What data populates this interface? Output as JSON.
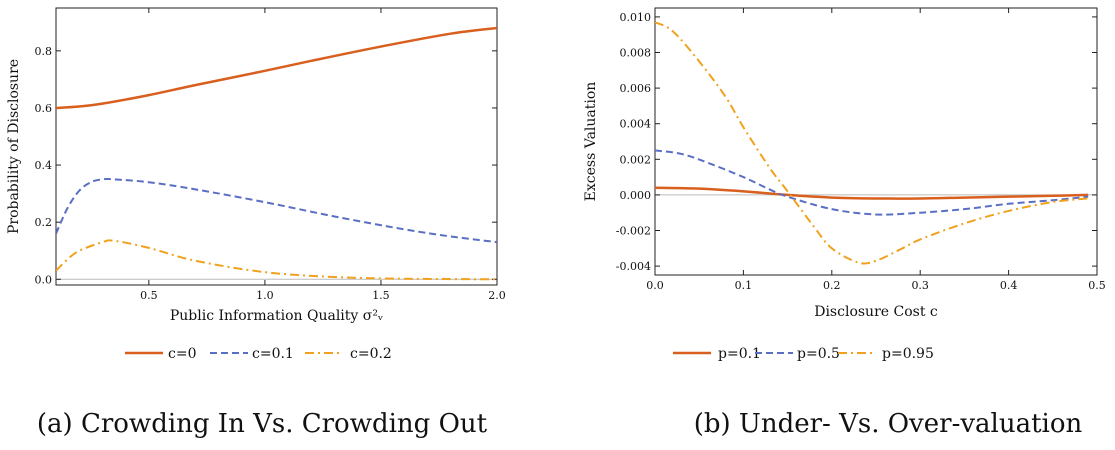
{
  "colors": {
    "s1": "#D95F1E",
    "s2": "#5A6FC4",
    "s3": "#F0A21E"
  },
  "captions": {
    "a": "(a) Crowding In Vs. Crowding Out",
    "b": "(b) Under- Vs. Over-valuation"
  },
  "chart_data": [
    {
      "type": "line",
      "xlabel": "Public Information Quality σ²ᵥ",
      "ylabel": "Probability of Disclosure",
      "xlim": [
        0.1,
        2.0
      ],
      "ylim": [
        -0.02,
        0.95
      ],
      "xticks": [
        0.5,
        1.0,
        1.5,
        2.0
      ],
      "xtick_labels": [
        "0.5",
        "1.0",
        "1.5",
        "2.0"
      ],
      "yticks": [
        0.0,
        0.2,
        0.4,
        0.6,
        0.8
      ],
      "ytick_labels": [
        "0.0",
        "0.2",
        "0.4",
        "0.6",
        "0.8"
      ],
      "zero_line": true,
      "legend_position": "bottom",
      "series": [
        {
          "name": "c=0",
          "style": "solid",
          "x": [
            0.1,
            0.2,
            0.3,
            0.5,
            0.7,
            1.0,
            1.2,
            1.5,
            1.8,
            2.0
          ],
          "y": [
            0.6,
            0.605,
            0.615,
            0.645,
            0.68,
            0.73,
            0.765,
            0.815,
            0.86,
            0.88
          ]
        },
        {
          "name": "c=0.1",
          "style": "dashed",
          "x": [
            0.1,
            0.15,
            0.2,
            0.25,
            0.3,
            0.35,
            0.5,
            0.7,
            1.0,
            1.3,
            1.6,
            1.8,
            2.0
          ],
          "y": [
            0.16,
            0.25,
            0.31,
            0.34,
            0.35,
            0.35,
            0.34,
            0.315,
            0.27,
            0.22,
            0.175,
            0.15,
            0.13
          ]
        },
        {
          "name": "c=0.2",
          "style": "dashdot",
          "x": [
            0.1,
            0.15,
            0.2,
            0.3,
            0.35,
            0.5,
            0.7,
            1.0,
            1.3,
            1.6,
            2.0
          ],
          "y": [
            0.03,
            0.07,
            0.1,
            0.13,
            0.135,
            0.11,
            0.065,
            0.025,
            0.008,
            0.002,
            0.0
          ]
        }
      ]
    },
    {
      "type": "line",
      "xlabel": "Disclosure Cost c",
      "ylabel": "Excess Valuation",
      "xlim": [
        0.0,
        0.5
      ],
      "ylim": [
        -0.0045,
        0.0105
      ],
      "xticks": [
        0.0,
        0.1,
        0.2,
        0.3,
        0.4,
        0.5
      ],
      "xtick_labels": [
        "0.0",
        "0.1",
        "0.2",
        "0.3",
        "0.4",
        "0.5"
      ],
      "yticks": [
        -0.004,
        -0.002,
        0.0,
        0.002,
        0.004,
        0.006,
        0.008,
        0.01
      ],
      "ytick_labels": [
        "-0.004",
        "-0.002",
        "0.000",
        "0.002",
        "0.004",
        "0.006",
        "0.008",
        "0.010"
      ],
      "zero_line": true,
      "legend_position": "bottom",
      "series": [
        {
          "name": "p=0.1",
          "style": "solid",
          "x": [
            0.0,
            0.05,
            0.1,
            0.15,
            0.2,
            0.25,
            0.3,
            0.35,
            0.4,
            0.45,
            0.49
          ],
          "y": [
            0.0004,
            0.00035,
            0.0002,
            0.0,
            -0.00015,
            -0.0002,
            -0.0002,
            -0.00015,
            -0.0001,
            -5e-05,
            0.0
          ]
        },
        {
          "name": "p=0.5",
          "style": "dashed",
          "x": [
            0.0,
            0.03,
            0.06,
            0.1,
            0.13,
            0.15,
            0.2,
            0.25,
            0.3,
            0.35,
            0.4,
            0.45,
            0.49
          ],
          "y": [
            0.0025,
            0.0023,
            0.0018,
            0.001,
            0.0003,
            -0.0001,
            -0.0008,
            -0.0011,
            -0.001,
            -0.0008,
            -0.0005,
            -0.0003,
            -0.0001
          ]
        },
        {
          "name": "p=0.95",
          "style": "dashdot",
          "x": [
            0.0,
            0.02,
            0.05,
            0.08,
            0.1,
            0.13,
            0.15,
            0.18,
            0.2,
            0.23,
            0.25,
            0.28,
            0.3,
            0.35,
            0.4,
            0.45,
            0.49
          ],
          "y": [
            0.0097,
            0.0092,
            0.0075,
            0.0055,
            0.0038,
            0.0015,
            0.0002,
            -0.0018,
            -0.003,
            -0.0038,
            -0.0037,
            -0.003,
            -0.0025,
            -0.0016,
            -0.0009,
            -0.0004,
            -0.0002
          ]
        }
      ]
    }
  ]
}
